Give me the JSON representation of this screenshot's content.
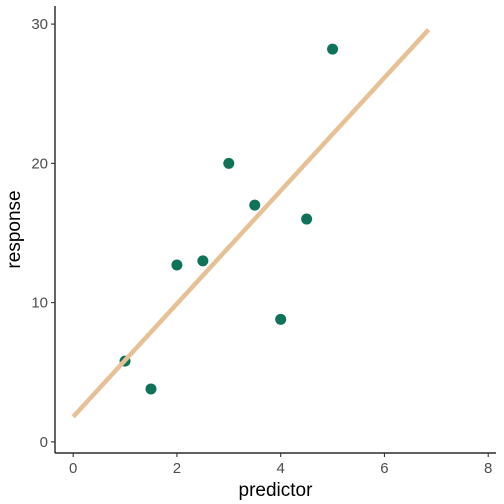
{
  "chart_data": {
    "type": "scatter",
    "title": "",
    "xlabel": "predictor",
    "ylabel": "response",
    "xlim": [
      -0.35,
      8.15
    ],
    "ylim": [
      -0.8,
      31.3
    ],
    "x_ticks": [
      0,
      2,
      4,
      6,
      8
    ],
    "y_ticks": [
      0,
      10,
      20,
      30
    ],
    "x_tick_labels": [
      "0",
      "2",
      "4",
      "6",
      "8"
    ],
    "y_tick_labels": [
      "0",
      "10",
      "20",
      "30"
    ],
    "grid": false,
    "legend": "none",
    "series": [
      {
        "type": "scatter",
        "points": [
          {
            "x": 1.0,
            "y": 5.8
          },
          {
            "x": 1.5,
            "y": 3.8
          },
          {
            "x": 2.0,
            "y": 12.7
          },
          {
            "x": 2.5,
            "y": 13.0
          },
          {
            "x": 3.0,
            "y": 20.0
          },
          {
            "x": 3.5,
            "y": 17.0
          },
          {
            "x": 4.0,
            "y": 8.8
          },
          {
            "x": 4.5,
            "y": 16.0
          },
          {
            "x": 5.0,
            "y": 28.2
          }
        ],
        "color": "#0f735a"
      },
      {
        "type": "line",
        "points": [
          {
            "x": 0.0,
            "y": 1.8
          },
          {
            "x": 6.85,
            "y": 29.6
          }
        ],
        "color": "#e8c096"
      }
    ]
  }
}
